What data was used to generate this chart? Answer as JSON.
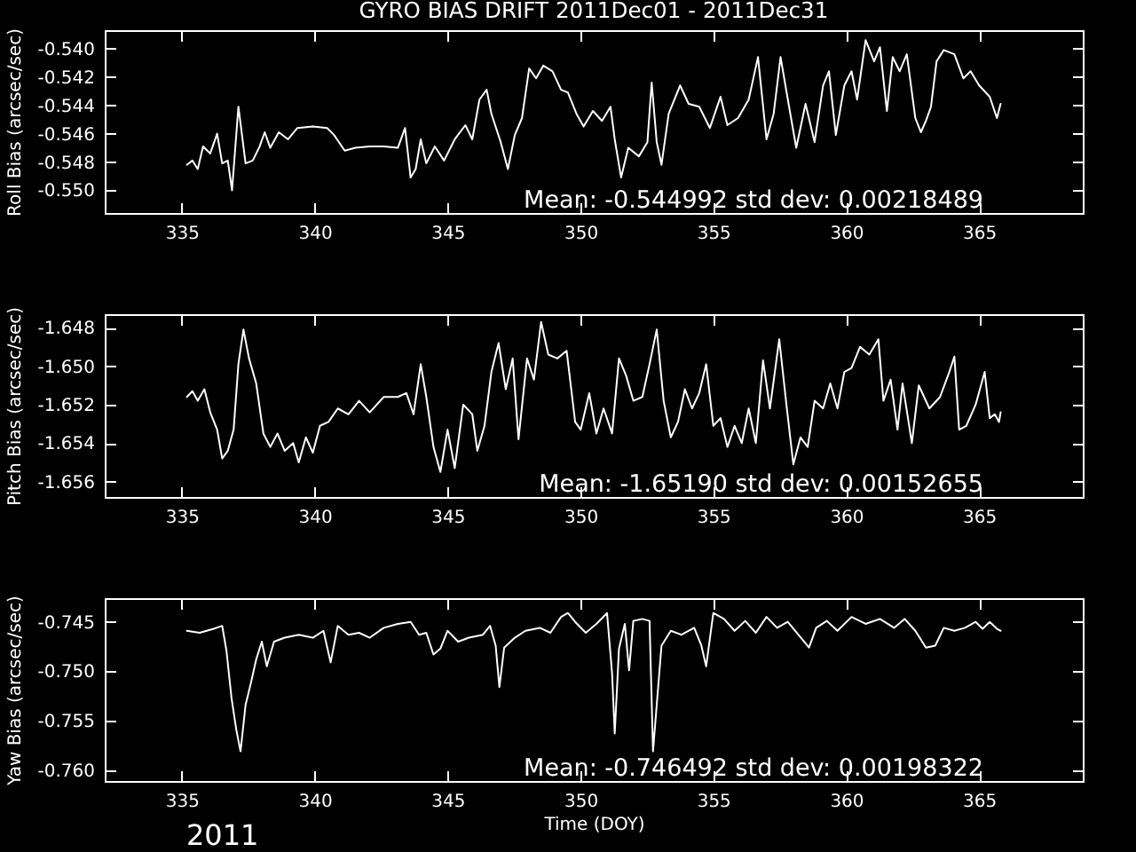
{
  "chart_data": [
    {
      "type": "line",
      "title": "GYRO BIAS DRIFT 2011Dec01 - 2011Dec31",
      "ylabel": "Roll Bias (arcsec/sec)",
      "x": [
        335.19,
        335.4,
        335.6,
        335.8,
        336.07,
        336.33,
        336.52,
        336.73,
        336.89,
        337.13,
        337.4,
        337.67,
        337.93,
        338.12,
        338.33,
        338.65,
        339.0,
        339.35,
        339.93,
        340.47,
        340.73,
        341.13,
        341.53,
        342.07,
        342.6,
        343.13,
        343.4,
        343.61,
        343.8,
        343.99,
        344.2,
        344.52,
        344.87,
        345.27,
        345.67,
        345.93,
        346.2,
        346.47,
        346.65,
        347.0,
        347.27,
        347.53,
        347.8,
        348.07,
        348.33,
        348.6,
        348.95,
        349.27,
        349.53,
        349.85,
        350.12,
        350.47,
        350.81,
        351.13,
        351.29,
        351.53,
        351.8,
        352.2,
        352.52,
        352.68,
        352.87,
        353.05,
        353.32,
        353.75,
        354.07,
        354.47,
        354.87,
        355.27,
        355.53,
        355.93,
        356.33,
        356.68,
        357.0,
        357.27,
        357.53,
        357.85,
        358.12,
        358.47,
        358.81,
        359.13,
        359.35,
        359.61,
        359.93,
        360.2,
        360.41,
        360.73,
        361.05,
        361.27,
        361.53,
        361.75,
        362.01,
        362.28,
        362.6,
        362.81,
        363.0,
        363.19,
        363.4,
        363.67,
        364.07,
        364.41,
        364.68,
        365.0,
        365.4,
        365.67,
        365.81
      ],
      "series": [
        {
          "color": "#ffffff",
          "values": [
            -0.5482,
            -0.5479,
            -0.5485,
            -0.5469,
            -0.5474,
            -0.546,
            -0.5481,
            -0.5479,
            -0.55,
            -0.5441,
            -0.5481,
            -0.5479,
            -0.5469,
            -0.5459,
            -0.547,
            -0.5459,
            -0.5464,
            -0.5456,
            -0.5455,
            -0.5456,
            -0.5461,
            -0.5472,
            -0.547,
            -0.5469,
            -0.5469,
            -0.547,
            -0.5456,
            -0.5491,
            -0.5485,
            -0.5464,
            -0.5481,
            -0.5469,
            -0.5479,
            -0.5464,
            -0.5454,
            -0.5464,
            -0.5436,
            -0.5429,
            -0.5446,
            -0.5466,
            -0.5485,
            -0.5461,
            -0.5449,
            -0.5414,
            -0.5421,
            -0.5412,
            -0.5416,
            -0.5429,
            -0.5431,
            -0.5446,
            -0.5455,
            -0.5444,
            -0.5451,
            -0.5441,
            -0.5464,
            -0.5491,
            -0.547,
            -0.5476,
            -0.5466,
            -0.5424,
            -0.5466,
            -0.5482,
            -0.5446,
            -0.5426,
            -0.5439,
            -0.5441,
            -0.5456,
            -0.5434,
            -0.5454,
            -0.5449,
            -0.5436,
            -0.5406,
            -0.5464,
            -0.5446,
            -0.5406,
            -0.5441,
            -0.547,
            -0.5439,
            -0.5466,
            -0.5426,
            -0.5416,
            -0.5461,
            -0.5426,
            -0.5416,
            -0.5436,
            -0.5394,
            -0.5409,
            -0.5399,
            -0.5444,
            -0.5406,
            -0.5416,
            -0.5404,
            -0.5449,
            -0.5459,
            -0.5451,
            -0.5441,
            -0.5409,
            -0.5401,
            -0.5404,
            -0.5421,
            -0.5416,
            -0.5426,
            -0.5434,
            -0.5449,
            -0.5439
          ]
        }
      ],
      "xlim": [
        332.1,
        368.9
      ],
      "xticks": [
        335,
        340,
        345,
        350,
        355,
        360,
        365
      ],
      "ylim": [
        -0.5516,
        -0.5387
      ],
      "yticks": [
        {
          "value": -0.54,
          "label": "-0.540"
        },
        -0.542,
        -0.544,
        -0.546,
        -0.548,
        {
          "value": -0.55,
          "label": "-0.550"
        }
      ],
      "annotations": [
        "Mean: -0.544992 std dev: 0.00218489"
      ]
    },
    {
      "type": "line",
      "ylabel": "Pitch Bias (arcsec/sec)",
      "x": [
        335.19,
        335.4,
        335.6,
        335.85,
        336.07,
        336.33,
        336.52,
        336.73,
        336.95,
        337.13,
        337.32,
        337.53,
        337.8,
        338.07,
        338.33,
        338.6,
        338.87,
        339.19,
        339.4,
        339.67,
        339.93,
        340.2,
        340.52,
        340.87,
        341.27,
        341.67,
        342.07,
        342.6,
        343.13,
        343.45,
        343.72,
        343.99,
        344.2,
        344.47,
        344.73,
        345.0,
        345.27,
        345.59,
        345.93,
        346.12,
        346.39,
        346.65,
        346.92,
        347.19,
        347.45,
        347.67,
        347.99,
        348.25,
        348.52,
        348.79,
        349.13,
        349.48,
        349.8,
        350.01,
        350.33,
        350.6,
        350.87,
        351.19,
        351.45,
        351.72,
        351.99,
        352.33,
        352.6,
        352.87,
        353.13,
        353.4,
        353.67,
        353.93,
        354.2,
        354.47,
        354.73,
        355.0,
        355.27,
        355.53,
        355.8,
        356.07,
        356.33,
        356.6,
        356.87,
        357.13,
        357.48,
        357.75,
        358.01,
        358.28,
        358.55,
        358.81,
        359.13,
        359.4,
        359.67,
        359.93,
        360.2,
        360.52,
        360.87,
        361.21,
        361.4,
        361.67,
        361.93,
        362.12,
        362.47,
        362.73,
        363.13,
        363.53,
        363.88,
        364.07,
        364.25,
        364.52,
        364.87,
        365.21,
        365.4,
        365.59,
        365.75,
        365.81
      ],
      "series": [
        {
          "color": "#ffffff",
          "values": [
            -1.6516,
            -1.6513,
            -1.6518,
            -1.6512,
            -1.6524,
            -1.6533,
            -1.6548,
            -1.6544,
            -1.6533,
            -1.6499,
            -1.6481,
            -1.6496,
            -1.6509,
            -1.6535,
            -1.6542,
            -1.6535,
            -1.6544,
            -1.654,
            -1.655,
            -1.6537,
            -1.6545,
            -1.6531,
            -1.6529,
            -1.6522,
            -1.6525,
            -1.6518,
            -1.6524,
            -1.6516,
            -1.6516,
            -1.6514,
            -1.6525,
            -1.6499,
            -1.6516,
            -1.6542,
            -1.6555,
            -1.6533,
            -1.6553,
            -1.652,
            -1.6525,
            -1.6544,
            -1.6531,
            -1.6503,
            -1.6488,
            -1.6512,
            -1.6496,
            -1.6538,
            -1.6496,
            -1.6507,
            -1.6477,
            -1.6494,
            -1.6496,
            -1.6492,
            -1.6529,
            -1.6533,
            -1.6514,
            -1.6535,
            -1.6522,
            -1.6535,
            -1.6496,
            -1.6505,
            -1.6518,
            -1.6516,
            -1.6499,
            -1.6481,
            -1.6518,
            -1.6537,
            -1.6529,
            -1.6512,
            -1.6522,
            -1.6514,
            -1.6499,
            -1.6531,
            -1.6527,
            -1.6542,
            -1.6531,
            -1.654,
            -1.6522,
            -1.654,
            -1.6497,
            -1.6522,
            -1.6486,
            -1.652,
            -1.6551,
            -1.6537,
            -1.6542,
            -1.6518,
            -1.6522,
            -1.6509,
            -1.6522,
            -1.6503,
            -1.6501,
            -1.649,
            -1.6494,
            -1.6486,
            -1.6518,
            -1.6507,
            -1.6533,
            -1.6509,
            -1.654,
            -1.651,
            -1.6522,
            -1.6516,
            -1.6503,
            -1.6495,
            -1.6533,
            -1.6531,
            -1.652,
            -1.6503,
            -1.6527,
            -1.6525,
            -1.6529,
            -1.6524
          ]
        }
      ],
      "xlim": [
        332.1,
        368.9
      ],
      "xticks": [
        335,
        340,
        345,
        350,
        355,
        360,
        365
      ],
      "ylim": [
        -1.6568,
        -1.6473
      ],
      "yticks": [
        -1.648,
        {
          "value": -1.65,
          "label": "-1.650"
        },
        -1.652,
        -1.654,
        -1.656
      ],
      "annotations": [
        "Mean: -1.65190 std dev: 0.00152655"
      ]
    },
    {
      "type": "line",
      "ylabel": "Yaw Bias (arcsec/sec)",
      "xlabel": "Time (DOY)",
      "x": [
        335.19,
        335.67,
        336.2,
        336.52,
        336.68,
        336.87,
        337.05,
        337.21,
        337.4,
        337.59,
        337.8,
        338.01,
        338.2,
        338.47,
        338.87,
        339.4,
        339.93,
        340.33,
        340.6,
        340.87,
        341.27,
        341.67,
        342.07,
        342.6,
        343.13,
        343.61,
        343.93,
        344.2,
        344.47,
        344.73,
        345.0,
        345.4,
        345.8,
        346.33,
        346.6,
        346.81,
        346.95,
        347.13,
        347.53,
        347.93,
        348.47,
        348.87,
        349.27,
        349.53,
        349.8,
        350.2,
        350.6,
        351.0,
        351.19,
        351.29,
        351.45,
        351.67,
        351.83,
        351.99,
        352.33,
        352.6,
        352.73,
        352.87,
        353.05,
        353.4,
        353.8,
        354.28,
        354.55,
        354.73,
        355.0,
        355.4,
        355.8,
        356.2,
        356.6,
        357.0,
        357.4,
        357.8,
        358.2,
        358.6,
        358.87,
        359.27,
        359.67,
        360.2,
        360.73,
        361.27,
        361.8,
        362.2,
        362.6,
        363.0,
        363.35,
        363.67,
        364.07,
        364.47,
        364.87,
        365.13,
        365.4,
        365.67,
        365.81
      ],
      "series": [
        {
          "color": "#ffffff",
          "values": [
            -0.7459,
            -0.7461,
            -0.7457,
            -0.7454,
            -0.7479,
            -0.7527,
            -0.7559,
            -0.7581,
            -0.7534,
            -0.7513,
            -0.7488,
            -0.747,
            -0.7495,
            -0.747,
            -0.7466,
            -0.7463,
            -0.7466,
            -0.7459,
            -0.7491,
            -0.7454,
            -0.7463,
            -0.7461,
            -0.7466,
            -0.7456,
            -0.7452,
            -0.745,
            -0.7463,
            -0.7461,
            -0.7483,
            -0.7477,
            -0.7459,
            -0.747,
            -0.7466,
            -0.7463,
            -0.7454,
            -0.7474,
            -0.7516,
            -0.7476,
            -0.7466,
            -0.7459,
            -0.7456,
            -0.7461,
            -0.7445,
            -0.7441,
            -0.745,
            -0.7461,
            -0.7452,
            -0.7441,
            -0.7502,
            -0.7563,
            -0.7477,
            -0.7452,
            -0.7499,
            -0.7449,
            -0.7447,
            -0.7449,
            -0.7581,
            -0.7534,
            -0.7474,
            -0.7459,
            -0.7463,
            -0.7456,
            -0.7474,
            -0.7495,
            -0.7441,
            -0.7447,
            -0.7459,
            -0.7449,
            -0.7461,
            -0.7445,
            -0.7456,
            -0.745,
            -0.7463,
            -0.7476,
            -0.7456,
            -0.7449,
            -0.7459,
            -0.7445,
            -0.7452,
            -0.7447,
            -0.7456,
            -0.7447,
            -0.7459,
            -0.7476,
            -0.7474,
            -0.7456,
            -0.7459,
            -0.7456,
            -0.745,
            -0.7457,
            -0.745,
            -0.7457,
            -0.7459
          ]
        }
      ],
      "xlim": [
        332.1,
        368.9
      ],
      "xticks": [
        335,
        340,
        345,
        350,
        355,
        360,
        365
      ],
      "ylim": [
        -0.7611,
        -0.7426
      ],
      "yticks": [
        -0.745,
        {
          "value": -0.75,
          "label": "-0.750"
        },
        -0.755,
        {
          "value": -0.76,
          "label": "-0.760"
        }
      ],
      "annotations": [
        "Mean: -0.746492 std dev: 0.00198322",
        "2011"
      ]
    }
  ]
}
